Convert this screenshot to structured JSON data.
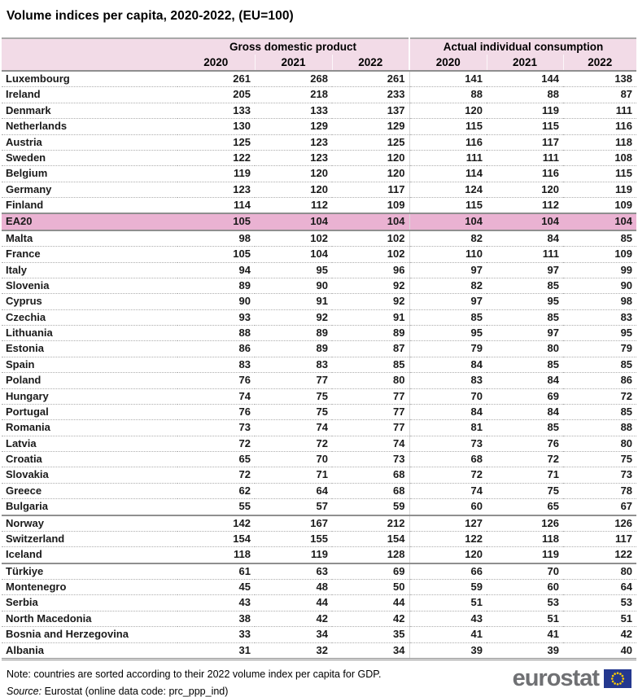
{
  "title": "Volume indices per capita, 2020-2022, (EU=100)",
  "chart_data": {
    "type": "table",
    "title": "Volume indices per capita, 2020-2022, (EU=100)",
    "column_groups": [
      "Gross domestic product",
      "Actual individual consumption"
    ],
    "years": [
      "2020",
      "2021",
      "2022",
      "2020",
      "2021",
      "2022"
    ],
    "rows": [
      {
        "country": "Luxembourg",
        "values": [
          261,
          268,
          261,
          141,
          144,
          138
        ]
      },
      {
        "country": "Ireland",
        "values": [
          205,
          218,
          233,
          88,
          88,
          87
        ]
      },
      {
        "country": "Denmark",
        "values": [
          133,
          133,
          137,
          120,
          119,
          111
        ]
      },
      {
        "country": "Netherlands",
        "values": [
          130,
          129,
          129,
          115,
          115,
          116
        ]
      },
      {
        "country": "Austria",
        "values": [
          125,
          123,
          125,
          116,
          117,
          118
        ]
      },
      {
        "country": "Sweden",
        "values": [
          122,
          123,
          120,
          111,
          111,
          108
        ]
      },
      {
        "country": "Belgium",
        "values": [
          119,
          120,
          120,
          114,
          116,
          115
        ]
      },
      {
        "country": "Germany",
        "values": [
          123,
          120,
          117,
          124,
          120,
          119
        ]
      },
      {
        "country": "Finland",
        "values": [
          114,
          112,
          109,
          115,
          112,
          109
        ]
      },
      {
        "country": "EA20",
        "values": [
          105,
          104,
          104,
          104,
          104,
          104
        ],
        "highlight": true
      },
      {
        "country": "Malta",
        "values": [
          98,
          102,
          102,
          82,
          84,
          85
        ]
      },
      {
        "country": "France",
        "values": [
          105,
          104,
          102,
          110,
          111,
          109
        ]
      },
      {
        "country": "Italy",
        "values": [
          94,
          95,
          96,
          97,
          97,
          99
        ]
      },
      {
        "country": "Slovenia",
        "values": [
          89,
          90,
          92,
          82,
          85,
          90
        ]
      },
      {
        "country": "Cyprus",
        "values": [
          90,
          91,
          92,
          97,
          95,
          98
        ]
      },
      {
        "country": "Czechia",
        "values": [
          93,
          92,
          91,
          85,
          85,
          83
        ]
      },
      {
        "country": "Lithuania",
        "values": [
          88,
          89,
          89,
          95,
          97,
          95
        ]
      },
      {
        "country": "Estonia",
        "values": [
          86,
          89,
          87,
          79,
          80,
          79
        ]
      },
      {
        "country": "Spain",
        "values": [
          83,
          83,
          85,
          84,
          85,
          85
        ]
      },
      {
        "country": "Poland",
        "values": [
          76,
          77,
          80,
          83,
          84,
          86
        ]
      },
      {
        "country": "Hungary",
        "values": [
          74,
          75,
          77,
          70,
          69,
          72
        ]
      },
      {
        "country": "Portugal",
        "values": [
          76,
          75,
          77,
          84,
          84,
          85
        ]
      },
      {
        "country": "Romania",
        "values": [
          73,
          74,
          77,
          81,
          85,
          88
        ]
      },
      {
        "country": "Latvia",
        "values": [
          72,
          72,
          74,
          73,
          76,
          80
        ]
      },
      {
        "country": "Croatia",
        "values": [
          65,
          70,
          73,
          68,
          72,
          75
        ]
      },
      {
        "country": "Slovakia",
        "values": [
          72,
          71,
          68,
          72,
          71,
          73
        ]
      },
      {
        "country": "Greece",
        "values": [
          62,
          64,
          68,
          74,
          75,
          78
        ]
      },
      {
        "country": "Bulgaria",
        "values": [
          55,
          57,
          59,
          60,
          65,
          67
        ],
        "section_end": true
      },
      {
        "country": "Norway",
        "values": [
          142,
          167,
          212,
          127,
          126,
          126
        ]
      },
      {
        "country": "Switzerland",
        "values": [
          154,
          155,
          154,
          122,
          118,
          117
        ]
      },
      {
        "country": "Iceland",
        "values": [
          118,
          119,
          128,
          120,
          119,
          122
        ],
        "section_end": true
      },
      {
        "country": "Türkiye",
        "values": [
          61,
          63,
          69,
          66,
          70,
          80
        ]
      },
      {
        "country": "Montenegro",
        "values": [
          45,
          48,
          50,
          59,
          60,
          64
        ]
      },
      {
        "country": "Serbia",
        "values": [
          43,
          44,
          44,
          51,
          53,
          53
        ]
      },
      {
        "country": "North Macedonia",
        "values": [
          38,
          42,
          42,
          43,
          51,
          51
        ]
      },
      {
        "country": "Bosnia and Herzegovina",
        "values": [
          33,
          34,
          35,
          41,
          41,
          42
        ]
      },
      {
        "country": "Albania",
        "values": [
          31,
          32,
          34,
          39,
          39,
          40
        ]
      }
    ]
  },
  "footer": {
    "note": "Note: countries are sorted according to their 2022 volume index per capita for GDP.",
    "source_label": "Source:",
    "source_text": "Eurostat (online data code: prc_ppp_ind)",
    "logo_text": "eurostat"
  },
  "colors": {
    "header_bg": "#f2dbe7",
    "highlight_bg": "#eab2d2",
    "logo_gray": "#6f7073",
    "flag_blue": "#24388f",
    "star_yellow": "#ffcc00"
  }
}
